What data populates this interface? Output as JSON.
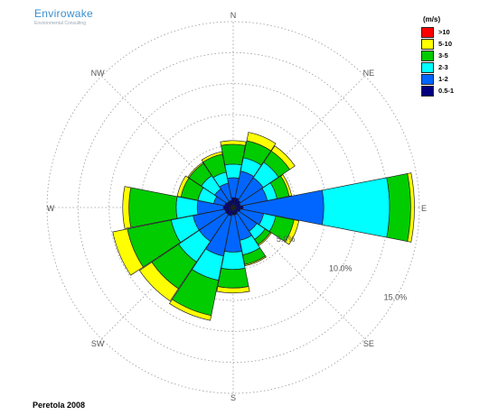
{
  "logo": {
    "name": "Envirowake",
    "tagline": "Environmental Consulting"
  },
  "footer": "Peretola 2008",
  "colors": {
    "grid": "#9a9a9a",
    "outline": "#222222"
  },
  "chart_data": {
    "type": "wind-rose",
    "title": "Peretola 2008",
    "directions": [
      "N",
      "NNE",
      "NE",
      "ENE",
      "E",
      "ESE",
      "SE",
      "SSE",
      "S",
      "SSW",
      "SW",
      "WSW",
      "W",
      "WNW",
      "NW",
      "NNW"
    ],
    "compass_labels": [
      "N",
      "NE",
      "E",
      "SE",
      "S",
      "SW",
      "W",
      "NW"
    ],
    "ring_labels": [
      "5.0%",
      "10.0%",
      "15.0%"
    ],
    "rmax": 15,
    "unit": "(m/s)",
    "legend": [
      {
        "label": ">10",
        "color": "#ff0000"
      },
      {
        "label": "5-10",
        "color": "#ffff00"
      },
      {
        "label": "3-5",
        "color": "#00cc00"
      },
      {
        "label": "2-3",
        "color": "#00ffff"
      },
      {
        "label": "1-2",
        "color": "#0066ff"
      },
      {
        "label": "0.5-1",
        "color": "#000080"
      }
    ],
    "bins_order": [
      "0.5-1",
      "1-2",
      "2-3",
      "3-5",
      "5-10",
      ">10"
    ],
    "series": [
      {
        "direction": "N",
        "cumulative": [
          0.8,
          2.4,
          3.5,
          5.1,
          5.4,
          5.4
        ]
      },
      {
        "direction": "NNE",
        "cumulative": [
          0.8,
          3.0,
          4.1,
          5.5,
          6.2,
          6.2
        ]
      },
      {
        "direction": "NE",
        "cumulative": [
          0.7,
          2.9,
          4.4,
          5.5,
          6.0,
          6.0
        ]
      },
      {
        "direction": "ENE",
        "cumulative": [
          0.6,
          2.8,
          3.6,
          4.6,
          4.8,
          4.8
        ]
      },
      {
        "direction": "E",
        "cumulative": [
          0.8,
          7.3,
          12.6,
          14.3,
          14.6,
          14.6
        ]
      },
      {
        "direction": "ESE",
        "cumulative": [
          0.6,
          2.5,
          3.5,
          5.0,
          5.4,
          5.4
        ]
      },
      {
        "direction": "SE",
        "cumulative": [
          0.5,
          2.3,
          3.1,
          3.6,
          3.7,
          3.7
        ]
      },
      {
        "direction": "SSE",
        "cumulative": [
          0.6,
          2.7,
          3.9,
          4.7,
          4.8,
          4.8
        ]
      },
      {
        "direction": "S",
        "cumulative": [
          0.6,
          3.6,
          5.0,
          6.5,
          6.9,
          6.9
        ]
      },
      {
        "direction": "SSW",
        "cumulative": [
          0.7,
          4.0,
          6.0,
          8.9,
          9.3,
          9.3
        ]
      },
      {
        "direction": "SW",
        "cumulative": [
          0.7,
          3.3,
          5.3,
          7.9,
          9.1,
          9.1
        ]
      },
      {
        "direction": "WSW",
        "cumulative": [
          0.7,
          3.3,
          5.1,
          8.7,
          9.9,
          9.9
        ]
      },
      {
        "direction": "W",
        "cumulative": [
          0.8,
          2.9,
          4.6,
          8.4,
          8.9,
          8.9
        ]
      },
      {
        "direction": "WNW",
        "cumulative": [
          0.7,
          1.6,
          2.9,
          4.3,
          4.6,
          4.6
        ]
      },
      {
        "direction": "NW",
        "cumulative": [
          0.6,
          1.8,
          3.1,
          4.3,
          4.4,
          4.4
        ]
      },
      {
        "direction": "NNW",
        "cumulative": [
          0.6,
          2.0,
          2.9,
          4.4,
          4.6,
          4.6
        ]
      }
    ]
  }
}
